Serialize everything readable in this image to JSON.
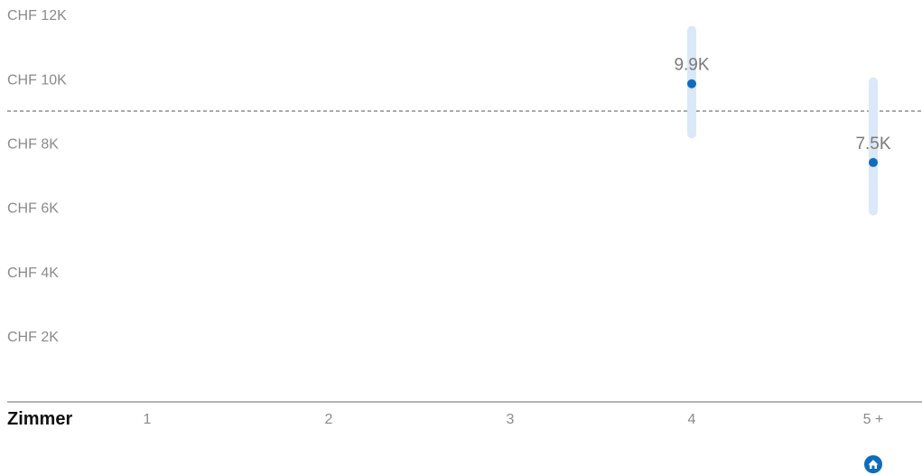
{
  "chart_data": {
    "type": "scatter",
    "xlabel": "Zimmer",
    "ylabel": "",
    "title": "",
    "ylim": [
      0,
      12000
    ],
    "yticks": [
      {
        "value": 12000,
        "label": "CHF 12K"
      },
      {
        "value": 10000,
        "label": "CHF 10K"
      },
      {
        "value": 8000,
        "label": "CHF 8K"
      },
      {
        "value": 6000,
        "label": "CHF 6K"
      },
      {
        "value": 4000,
        "label": "CHF 4K"
      },
      {
        "value": 2000,
        "label": "CHF 2K"
      }
    ],
    "categories": [
      "1",
      "2",
      "3",
      "4",
      "5 +"
    ],
    "points": [
      {
        "category": "4",
        "value": 9900,
        "label": "9.9K",
        "range": [
          8200,
          11700
        ]
      },
      {
        "category": "5 +",
        "value": 7450,
        "label": "7.5K",
        "range": [
          5800,
          10100
        ]
      }
    ],
    "reference_line": {
      "value": 9050,
      "style": "dashed"
    },
    "grid": false,
    "highlight_category": "5 +",
    "highlight_icon": "home-icon",
    "colors": {
      "point": "#0f6cbd",
      "range": "#dbe8f7",
      "axis": "#9a9a9a",
      "reference": "#555555",
      "tick_text": "#8a8a8a"
    }
  }
}
